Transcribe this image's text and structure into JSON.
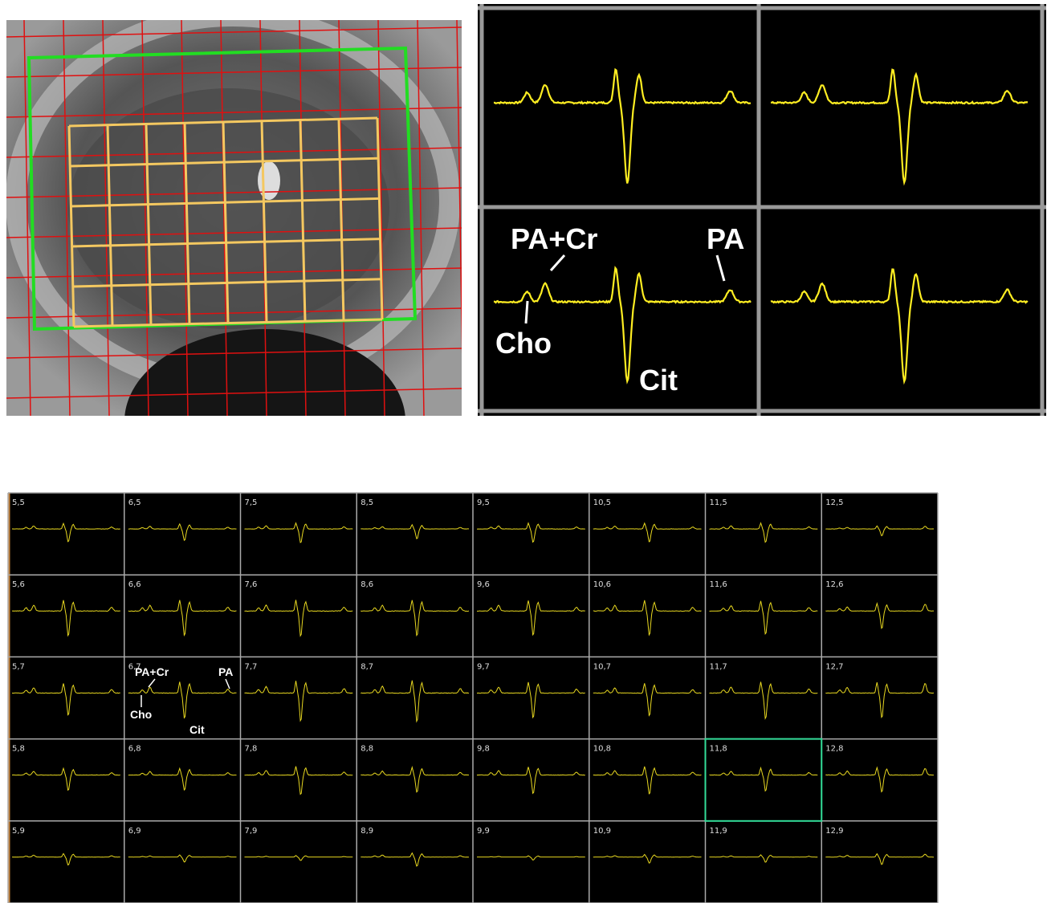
{
  "zoom_labels": [
    "PA+Cr",
    "PA",
    "Cho",
    "Cit"
  ],
  "voxel_grid": {
    "rows": [
      [
        "5,5",
        "6,5",
        "7,5",
        "8,5",
        "9,5",
        "10,5",
        "11,5",
        "12,5"
      ],
      [
        "5,6",
        "6,6",
        "7,6",
        "8,6",
        "9,6",
        "10,6",
        "11,6",
        "12,6"
      ],
      [
        "5,7",
        "6,7",
        "7,7",
        "8,7",
        "9,7",
        "10,7",
        "11,7",
        "12,7"
      ],
      [
        "5,8",
        "6,8",
        "7,8",
        "8,8",
        "9,8",
        "10,8",
        "11,8",
        "12,8"
      ],
      [
        "5,9",
        "6,9",
        "7,9",
        "8,9",
        "9,9",
        "10,9",
        "11,9",
        "12,9"
      ]
    ],
    "cell_labels": [
      "PA+Cr",
      "PA",
      "Cho",
      "Cit"
    ]
  }
}
